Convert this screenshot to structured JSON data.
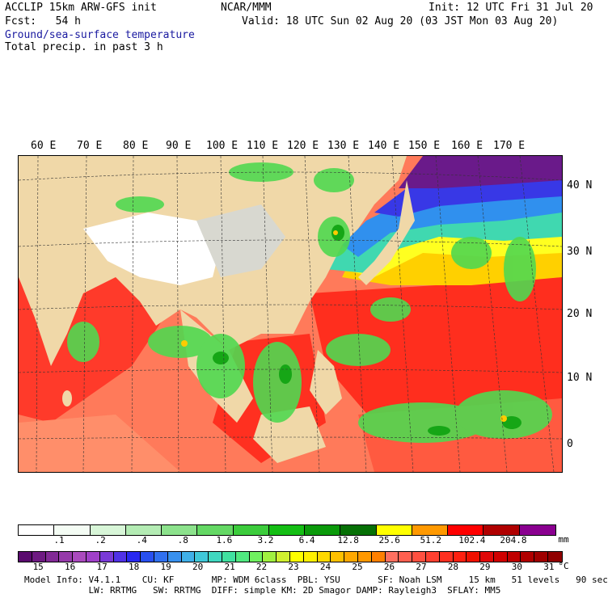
{
  "header": {
    "model": "ACCLIP 15km ARW-GFS init",
    "center": "NCAR/MMM",
    "init": "Init: 12 UTC Fri 31 Jul 20",
    "fcst": "Fcst:   54 h",
    "valid": "Valid: 18 UTC Sun 02 Aug 20 (03 JST Mon 03 Aug 20)",
    "field1": "Ground/sea-surface temperature",
    "field2": "Total precip. in past 3 h"
  },
  "map": {
    "lon_labels": [
      "60 E",
      "70 E",
      "80 E",
      "90 E",
      "100 E",
      "110 E",
      "120 E",
      "130 E",
      "140 E",
      "150 E",
      "160 E",
      "170 E"
    ],
    "lat_labels": [
      "40 N",
      "30 N",
      "20 N",
      "10 N",
      "0"
    ]
  },
  "precip_bar": {
    "unit": "mm",
    "ticks": [
      ".1",
      ".2",
      ".4",
      ".8",
      "1.6",
      "3.2",
      "6.4",
      "12.8",
      "25.6",
      "51.2",
      "102.4",
      "204.8"
    ],
    "colors": [
      "#ffffff",
      "#f4fcf4",
      "#d8f6d8",
      "#b4ecb4",
      "#8ce28c",
      "#64d864",
      "#3ccc3c",
      "#14be14",
      "#0a9a0a",
      "#067006",
      "#ffff00",
      "#ff9900",
      "#ff0000",
      "#b00000",
      "#8a0090"
    ]
  },
  "temp_bar": {
    "unit": "°C",
    "ticks": [
      "15",
      "16",
      "17",
      "18",
      "19",
      "20",
      "21",
      "22",
      "23",
      "24",
      "25",
      "26",
      "27",
      "28",
      "29",
      "30",
      "31"
    ],
    "colors": [
      "#5a0a6e",
      "#6e1a82",
      "#822a96",
      "#963aaa",
      "#aa4abe",
      "#a040c8",
      "#7a3ad8",
      "#5032e6",
      "#2828f0",
      "#2850f0",
      "#3070f0",
      "#3890ee",
      "#40b0e8",
      "#40c8d8",
      "#40d8c0",
      "#40e0a0",
      "#50e880",
      "#70f060",
      "#a0f040",
      "#d0f030",
      "#ffff00",
      "#fff000",
      "#ffd800",
      "#ffc000",
      "#ffa800",
      "#ff9800",
      "#ff8000",
      "#ff7060",
      "#ff6050",
      "#ff5040",
      "#ff4030",
      "#ff3020",
      "#ff2010",
      "#f01000",
      "#e00808",
      "#d00000",
      "#c00000",
      "#b00000",
      "#a00000",
      "#900000"
    ]
  },
  "footer": {
    "line1": "Model Info: V4.1.1    CU: KF       MP: WDM 6class  PBL: YSU       SF: Noah LSM     15 km   51 levels   90 sec",
    "line2": "            LW: RRTMG   SW: RRTMG  DIFF: simple KM: 2D Smagor DAMP: Rayleigh3  SFLAY: MM5"
  }
}
